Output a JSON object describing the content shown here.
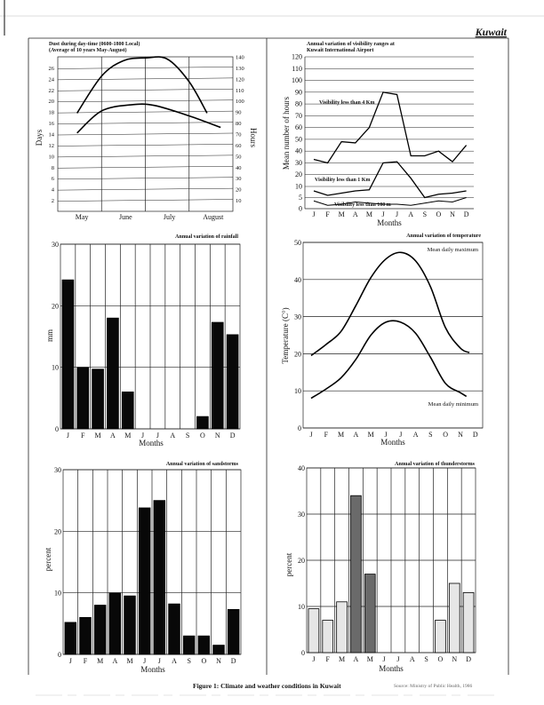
{
  "header": {
    "country": "Kuwait"
  },
  "figure": {
    "caption": "Figure 1: Climate and weather conditions in Kuwait",
    "source": "Source: Ministry of Public Health, 1986"
  },
  "chart_data": [
    {
      "type": "line",
      "title_line1": "Dust during day-time (0600-1800 Local)",
      "title_line2": "(Average of 10 years May-August)",
      "ylabel": "Days",
      "y2label": "Hours",
      "categories": [
        "May",
        "June",
        "July",
        "August"
      ],
      "xlim": [
        0,
        4
      ],
      "ylim": [
        0,
        28
      ],
      "y2lim": [
        0,
        140
      ],
      "yticks": [
        2,
        4,
        6,
        8,
        10,
        12,
        14,
        16,
        18,
        20,
        22,
        24,
        26
      ],
      "y2ticks": [
        10,
        20,
        30,
        40,
        50,
        60,
        70,
        80,
        90,
        100,
        110,
        120,
        130,
        140
      ],
      "grid": true,
      "series": [
        {
          "x": [
            0.44,
            1.0,
            1.5,
            2.0,
            2.5,
            3.0,
            3.41
          ],
          "y": [
            17.8,
            24.5,
            27.3,
            27.8,
            27.6,
            23.5,
            17.8
          ]
        },
        {
          "x": [
            0.44,
            1.0,
            1.67,
            2.2,
            3.0,
            3.72
          ],
          "y": [
            14.2,
            18.2,
            19.3,
            19.2,
            17.3,
            15.2
          ]
        }
      ]
    },
    {
      "type": "line",
      "title_line1": "Annual variation of visibility ranges at",
      "title_line2": "Kuwait International Airport",
      "ylabel": "Mean number of hours",
      "xlabel": "Months",
      "categories": [
        "J",
        "F",
        "M",
        "A",
        "M",
        "J",
        "J",
        "A",
        "S",
        "O",
        "N",
        "D"
      ],
      "yticks": [
        0,
        5,
        10,
        20,
        30,
        40,
        50,
        60,
        70,
        80,
        90,
        100,
        110,
        120
      ],
      "ylim": [
        0,
        120
      ],
      "grid": true,
      "series": [
        {
          "name": "Visibility less than 4 Km",
          "values": [
            33,
            30,
            48,
            47,
            60,
            90,
            88,
            36,
            36,
            40,
            31,
            45
          ]
        },
        {
          "name": "Visibility less than 1 Km",
          "values": [
            8,
            6,
            7,
            8,
            8.5,
            30,
            31,
            17,
            5,
            6.5,
            7,
            8
          ]
        },
        {
          "name": "Visibility less than 100 m",
          "values": [
            3.5,
            1.5,
            2,
            3,
            2.5,
            2,
            2,
            1.5,
            2.5,
            3.5,
            3,
            5
          ]
        }
      ]
    },
    {
      "type": "bar",
      "title": "Annual variation of rainfall",
      "ylabel": "mm",
      "xlabel": "Months",
      "categories": [
        "J",
        "F",
        "M",
        "A",
        "M",
        "J",
        "J",
        "A",
        "S",
        "O",
        "N",
        "D"
      ],
      "values": [
        24.2,
        10,
        9.7,
        18,
        6,
        0,
        0,
        0,
        0,
        2,
        17.3,
        15.3
      ],
      "yticks": [
        0,
        10,
        20,
        30
      ],
      "ylim": [
        0,
        30
      ],
      "grid": true
    },
    {
      "type": "line",
      "title": "Annual variation of temperature",
      "ylabel": "Temperature (C°)",
      "xlabel": "Months",
      "categories": [
        "J",
        "F",
        "M",
        "A",
        "M",
        "J",
        "J",
        "A",
        "S",
        "O",
        "N",
        "D"
      ],
      "yticks": [
        0,
        10,
        20,
        30,
        40,
        50
      ],
      "ylim": [
        0,
        50
      ],
      "grid": true,
      "series": [
        {
          "name": "Mean daily maximum",
          "x": [
            0,
            1,
            2,
            3,
            4,
            5,
            6,
            7,
            8,
            9,
            10,
            10.6
          ],
          "values": [
            19.5,
            22.5,
            26,
            33,
            40.5,
            45.5,
            47.3,
            45,
            38,
            27,
            21.5,
            20.3
          ]
        },
        {
          "name": "Mean daily minimum",
          "x": [
            0,
            1,
            2,
            3,
            4,
            5,
            6,
            7,
            8,
            9,
            10,
            10.4
          ],
          "values": [
            8,
            10.5,
            13.5,
            18.5,
            25,
            28.5,
            28.5,
            25.5,
            19,
            12,
            9.5,
            8.5
          ]
        }
      ]
    },
    {
      "type": "bar",
      "title": "Annual variation of sandstorms",
      "ylabel": "percent",
      "xlabel": "Months",
      "categories": [
        "J",
        "F",
        "M",
        "A",
        "M",
        "J",
        "J",
        "A",
        "S",
        "O",
        "N",
        "D"
      ],
      "values": [
        5.2,
        6,
        8,
        10,
        9.5,
        23.8,
        25,
        8.2,
        3,
        3,
        1.5,
        7.3
      ],
      "yticks": [
        0,
        10,
        20,
        30
      ],
      "ylim": [
        0,
        30
      ],
      "grid": true
    },
    {
      "type": "bar",
      "title": "Annual variation of thunderstorms",
      "ylabel": "percent",
      "xlabel": "Months",
      "categories": [
        "J",
        "F",
        "M",
        "A",
        "M",
        "J",
        "J",
        "A",
        "S",
        "O",
        "N",
        "D"
      ],
      "values": [
        9.5,
        7,
        11,
        34,
        17,
        0,
        0,
        0,
        0,
        7,
        15,
        13
      ],
      "yticks": [
        0,
        10,
        20,
        30,
        40
      ],
      "ylim": [
        0,
        40
      ],
      "grid": true
    }
  ]
}
